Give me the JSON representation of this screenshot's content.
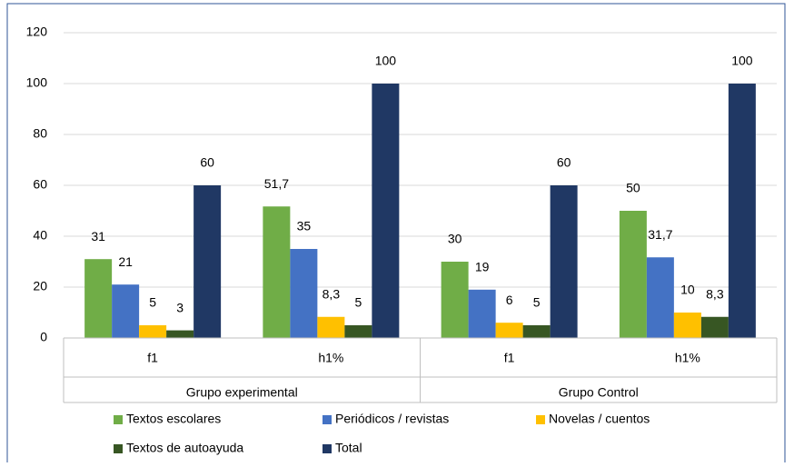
{
  "chart_data": {
    "type": "bar",
    "groups": [
      "Grupo experimental",
      "Grupo Control"
    ],
    "categories": [
      "f1",
      "h1%",
      "f1",
      "h1%"
    ],
    "series": [
      {
        "name": "Textos escolares",
        "color": "#70ad47",
        "values": [
          31,
          51.7,
          30,
          50
        ],
        "value_labels": [
          "31",
          "51,7",
          "30",
          "50"
        ]
      },
      {
        "name": "Periódicos / revistas",
        "color": "#4472c4",
        "values": [
          21,
          35,
          19,
          31.7
        ],
        "value_labels": [
          "21",
          "35",
          "19",
          "31,7"
        ]
      },
      {
        "name": "Novelas / cuentos",
        "color": "#ffc000",
        "values": [
          5,
          8.3,
          6,
          10
        ],
        "value_labels": [
          "5",
          "8,3",
          "6",
          "10"
        ]
      },
      {
        "name": "Textos de autoayuda",
        "color": "#375623",
        "values": [
          3,
          5,
          5,
          8.3
        ],
        "value_labels": [
          "3",
          "5",
          "5",
          "8,3"
        ]
      },
      {
        "name": "Total",
        "color": "#203864",
        "values": [
          60,
          100,
          60,
          100
        ],
        "value_labels": [
          "60",
          "100",
          "60",
          "100"
        ]
      }
    ],
    "ylim": [
      0,
      120
    ],
    "yticks": [
      0,
      20,
      40,
      60,
      80,
      100,
      120
    ],
    "grid": true
  }
}
